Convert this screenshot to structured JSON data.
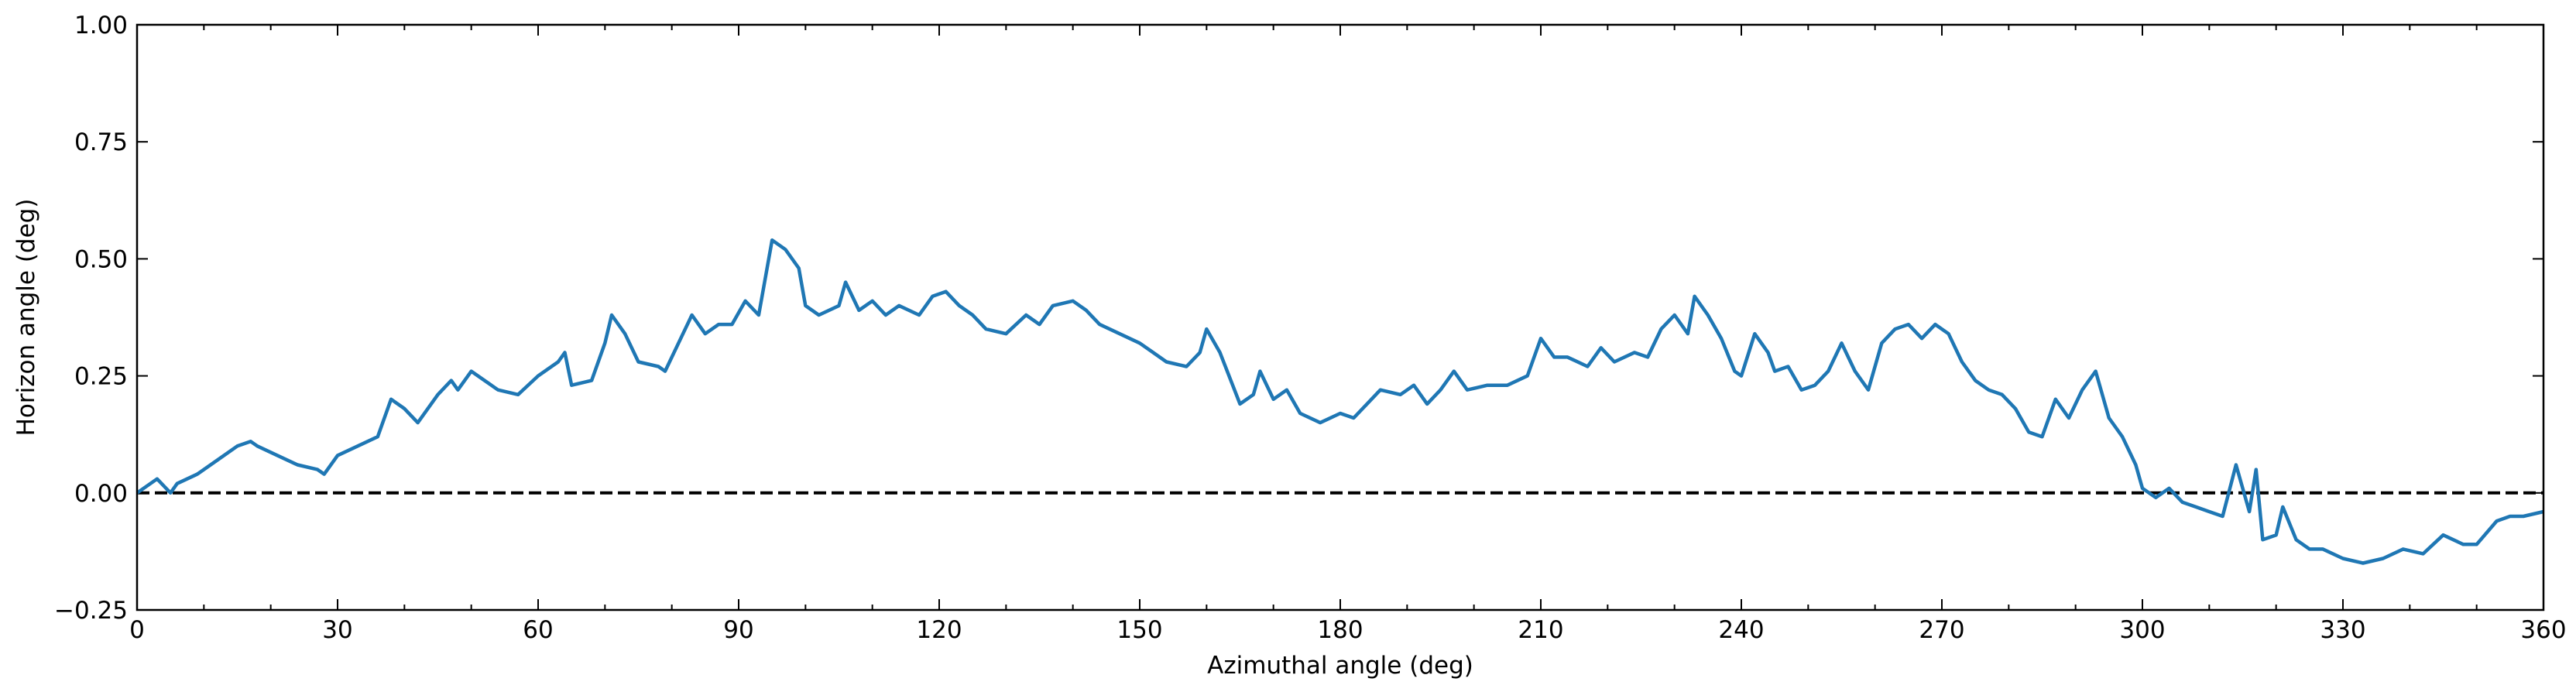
{
  "chart_data": {
    "type": "line",
    "xlabel": "Azimuthal angle (deg)",
    "ylabel": "Horizon angle (deg)",
    "x": [
      0,
      3,
      5,
      6,
      9,
      12,
      15,
      17,
      18,
      21,
      24,
      27,
      28,
      30,
      33,
      36,
      38,
      40,
      42,
      45,
      47,
      48,
      50,
      52,
      54,
      57,
      60,
      63,
      64,
      65,
      68,
      70,
      71,
      73,
      75,
      78,
      79,
      81,
      83,
      85,
      87,
      89,
      91,
      93,
      95,
      97,
      99,
      100,
      102,
      105,
      106,
      108,
      110,
      112,
      114,
      117,
      119,
      121,
      123,
      125,
      127,
      130,
      133,
      135,
      137,
      140,
      142,
      144,
      147,
      150,
      152,
      154,
      157,
      159,
      160,
      162,
      165,
      167,
      168,
      170,
      172,
      174,
      177,
      180,
      182,
      184,
      186,
      189,
      191,
      193,
      195,
      197,
      199,
      202,
      205,
      208,
      210,
      212,
      214,
      217,
      219,
      221,
      224,
      226,
      228,
      230,
      232,
      233,
      235,
      237,
      239,
      240,
      242,
      244,
      245,
      247,
      249,
      251,
      253,
      255,
      257,
      259,
      261,
      263,
      265,
      267,
      269,
      271,
      273,
      275,
      277,
      279,
      281,
      283,
      285,
      287,
      289,
      291,
      293,
      295,
      297,
      299,
      300,
      302,
      304,
      306,
      308,
      310,
      312,
      314,
      316,
      317,
      318,
      320,
      321,
      323,
      325,
      327,
      330,
      333,
      336,
      339,
      342,
      345,
      348,
      350,
      353,
      355,
      357,
      360
    ],
    "series": [
      {
        "name": "Horizon",
        "color": "#1f77b4",
        "values": [
          0.0,
          0.03,
          0.0,
          0.02,
          0.04,
          0.07,
          0.1,
          0.11,
          0.1,
          0.08,
          0.06,
          0.05,
          0.04,
          0.08,
          0.1,
          0.12,
          0.2,
          0.18,
          0.15,
          0.21,
          0.24,
          0.22,
          0.26,
          0.24,
          0.22,
          0.21,
          0.25,
          0.28,
          0.3,
          0.23,
          0.24,
          0.32,
          0.38,
          0.34,
          0.28,
          0.27,
          0.26,
          0.32,
          0.38,
          0.34,
          0.36,
          0.36,
          0.41,
          0.38,
          0.54,
          0.52,
          0.48,
          0.4,
          0.38,
          0.4,
          0.45,
          0.39,
          0.41,
          0.38,
          0.4,
          0.38,
          0.42,
          0.43,
          0.4,
          0.38,
          0.35,
          0.34,
          0.38,
          0.36,
          0.4,
          0.41,
          0.39,
          0.36,
          0.34,
          0.32,
          0.3,
          0.28,
          0.27,
          0.3,
          0.35,
          0.3,
          0.19,
          0.21,
          0.26,
          0.2,
          0.22,
          0.17,
          0.15,
          0.17,
          0.16,
          0.19,
          0.22,
          0.21,
          0.23,
          0.19,
          0.22,
          0.26,
          0.22,
          0.23,
          0.23,
          0.25,
          0.33,
          0.29,
          0.29,
          0.27,
          0.31,
          0.28,
          0.3,
          0.29,
          0.35,
          0.38,
          0.34,
          0.42,
          0.38,
          0.33,
          0.26,
          0.25,
          0.34,
          0.3,
          0.26,
          0.27,
          0.22,
          0.23,
          0.26,
          0.32,
          0.26,
          0.22,
          0.32,
          0.35,
          0.36,
          0.33,
          0.36,
          0.34,
          0.28,
          0.24,
          0.22,
          0.21,
          0.18,
          0.13,
          0.12,
          0.2,
          0.16,
          0.22,
          0.26,
          0.16,
          0.12,
          0.06,
          0.01,
          -0.01,
          0.01,
          -0.02,
          -0.03,
          -0.04,
          -0.05,
          0.06,
          -0.04,
          0.05,
          -0.1,
          -0.09,
          -0.03,
          -0.1,
          -0.12,
          -0.12,
          -0.14,
          -0.15,
          -0.14,
          -0.12,
          -0.13,
          -0.09,
          -0.11,
          -0.11,
          -0.06,
          -0.05,
          -0.05,
          -0.04
        ]
      }
    ],
    "hline": 0,
    "xlim": [
      0,
      360
    ],
    "xticks": [
      0,
      30,
      60,
      90,
      120,
      150,
      180,
      210,
      240,
      270,
      300,
      330,
      360
    ],
    "xminorticks": [
      10,
      20,
      40,
      50,
      70,
      80,
      100,
      110,
      130,
      140,
      160,
      170,
      190,
      200,
      220,
      230,
      250,
      260,
      280,
      290,
      310,
      320,
      340,
      350
    ],
    "ylim": [
      -0.25,
      1.0
    ],
    "yticks": [
      {
        "value": -0.25,
        "label": "−0.25"
      },
      {
        "value": 0,
        "label": "0.00"
      },
      {
        "value": 0.25,
        "label": "0.25"
      },
      {
        "value": 0.5,
        "label": "0.50"
      },
      {
        "value": 0.75,
        "label": "0.75"
      },
      {
        "value": 1.0,
        "label": "1.00"
      }
    ]
  }
}
